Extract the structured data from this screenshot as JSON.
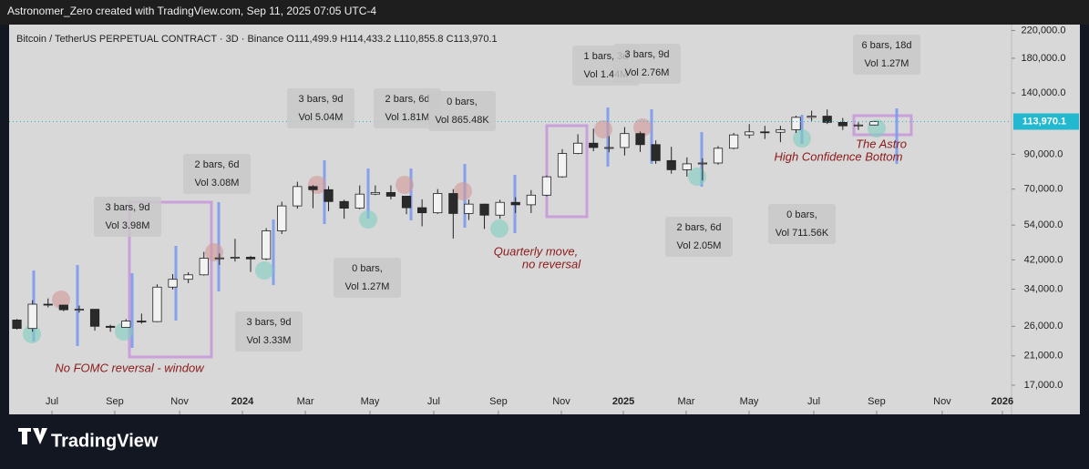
{
  "header": {
    "credit": "Astronomer_Zero created with TradingView.com, Sep 11, 2025 07:05 UTC-4",
    "symbol": "Bitcoin / TetherUS PERPETUAL CONTRACT · 3D · Binance  O111,499.9  H114,433.2  L110,855.8  C113,970.1"
  },
  "footer": {
    "logo": "TradingView"
  },
  "chart_data": {
    "type": "candlestick",
    "log_scale": true,
    "up_color": "#f2f2f2",
    "down_color": "#2a2a2a",
    "open": [
      27200,
      25600,
      30500,
      30300,
      29300,
      29400,
      26000,
      25800,
      27000,
      26900,
      34500,
      36500,
      37700,
      42500,
      42600,
      42800,
      42300,
      51800,
      62000,
      71300,
      69700,
      64000,
      61000,
      67500,
      68300,
      66500,
      61200,
      59000,
      67800,
      58700,
      62800,
      58000,
      63600,
      62500,
      67000,
      76500,
      90500,
      97500,
      94500,
      94500,
      104500,
      96500,
      86000,
      80500,
      84000,
      84500,
      94000,
      103500,
      105800,
      105500,
      107500,
      117500,
      118500,
      113300,
      110500,
      111200
    ],
    "high": [
      27400,
      31400,
      31800,
      30400,
      30200,
      29400,
      26300,
      27400,
      28500,
      35200,
      37900,
      38400,
      44500,
      44000,
      48900,
      43200,
      52800,
      63900,
      73800,
      72000,
      71500,
      64800,
      71900,
      71900,
      71900,
      66700,
      65000,
      70000,
      70000,
      64900,
      63000,
      64800,
      66000,
      69500,
      77200,
      93400,
      104000,
      108300,
      102700,
      109500,
      106000,
      99500,
      95000,
      88000,
      87500,
      95500,
      105000,
      111900,
      110500,
      110500,
      118900,
      123200,
      124400,
      117000,
      113400,
      114433.2
    ],
    "low": [
      25400,
      25000,
      29800,
      29000,
      28700,
      25200,
      25000,
      25800,
      26500,
      26800,
      33900,
      35500,
      37500,
      40500,
      41500,
      38500,
      41900,
      50600,
      60800,
      61000,
      59700,
      56500,
      60500,
      67000,
      65000,
      58400,
      53500,
      58500,
      49000,
      56000,
      52500,
      56500,
      58900,
      58900,
      66500,
      76000,
      90000,
      92000,
      91300,
      89200,
      91500,
      84000,
      78200,
      76600,
      74500,
      83500,
      93300,
      101000,
      100500,
      98200,
      105000,
      114500,
      112000,
      107300,
      107300,
      110855.8
    ],
    "close": [
      25600,
      30500,
      30300,
      29300,
      29400,
      26000,
      25800,
      27000,
      26900,
      34500,
      36500,
      37700,
      42500,
      42600,
      42800,
      42300,
      51800,
      62000,
      71300,
      69700,
      64000,
      61000,
      67500,
      68300,
      66500,
      61200,
      59000,
      67800,
      58700,
      62800,
      58000,
      63600,
      62500,
      67000,
      76500,
      90500,
      97500,
      94500,
      94500,
      104500,
      96500,
      86000,
      80500,
      84000,
      84500,
      94000,
      103500,
      105800,
      105500,
      107500,
      117500,
      118500,
      113300,
      110500,
      111200,
      113970.1
    ],
    "xlim": [
      0,
      64.33
    ],
    "xticks": [
      {
        "value": 2.75,
        "label": "Jul"
      },
      {
        "value": 6.78,
        "label": "Sep"
      },
      {
        "value": 10.94,
        "label": "Nov"
      },
      {
        "value": 14.97,
        "label": "2024"
      },
      {
        "value": 19.01,
        "label": "Mar"
      },
      {
        "value": 23.16,
        "label": "May"
      },
      {
        "value": 27.25,
        "label": "Jul"
      },
      {
        "value": 31.4,
        "label": "Sep"
      },
      {
        "value": 35.44,
        "label": "Nov"
      },
      {
        "value": 39.42,
        "label": "2025"
      },
      {
        "value": 43.45,
        "label": "Mar"
      },
      {
        "value": 47.49,
        "label": "May"
      },
      {
        "value": 51.64,
        "label": "Jul"
      },
      {
        "value": 55.67,
        "label": "Sep"
      },
      {
        "value": 59.88,
        "label": "Nov"
      },
      {
        "value": 63.74,
        "label": "2026"
      }
    ],
    "ylim": [
      13770,
      228000
    ],
    "yticks": [
      {
        "value": 220000,
        "label": "220,000.0"
      },
      {
        "value": 180000,
        "label": "180,000.0"
      },
      {
        "value": 140000,
        "label": "140,000.0"
      },
      {
        "value": 90000,
        "label": "90,000.0"
      },
      {
        "value": 70000,
        "label": "70,000.0"
      },
      {
        "value": 54000,
        "label": "54,000.0"
      },
      {
        "value": 42000,
        "label": "42,000.0"
      },
      {
        "value": 34000,
        "label": "34,000.0"
      },
      {
        "value": 26000,
        "label": "26,000.0"
      },
      {
        "value": 21000,
        "label": "21,000.0"
      },
      {
        "value": 17000,
        "label": "17,000.0"
      }
    ],
    "last_price": {
      "value": 113970.1,
      "label": "113,970.1"
    },
    "annotations": [
      "No FOMC reversal - window",
      "Quarterly move,",
      "no reversal",
      "The Astro",
      "High Confidence Bottom"
    ],
    "bar_labels": [
      [
        "3 bars, 9d",
        "Vol 3.98M"
      ],
      [
        "2 bars, 6d",
        "Vol 3.08M"
      ],
      [
        "3 bars, 9d",
        "Vol 5.04M"
      ],
      [
        "2 bars, 6d",
        "Vol 1.81M"
      ],
      [
        "0 bars,",
        "Vol 865.48K"
      ],
      [
        "1 bars, 3d",
        "Vol 1.44M"
      ],
      [
        "3 bars, 9d",
        "Vol 2.76M"
      ],
      [
        "6 bars, 18d",
        "Vol 1.27M"
      ],
      [
        "0 bars,",
        "Vol 1.27M"
      ],
      [
        "3 bars, 9d",
        "Vol 3.33M"
      ],
      [
        "2 bars, 6d",
        "Vol 2.05M"
      ],
      [
        "0 bars,",
        "Vol 711.56K"
      ]
    ]
  }
}
